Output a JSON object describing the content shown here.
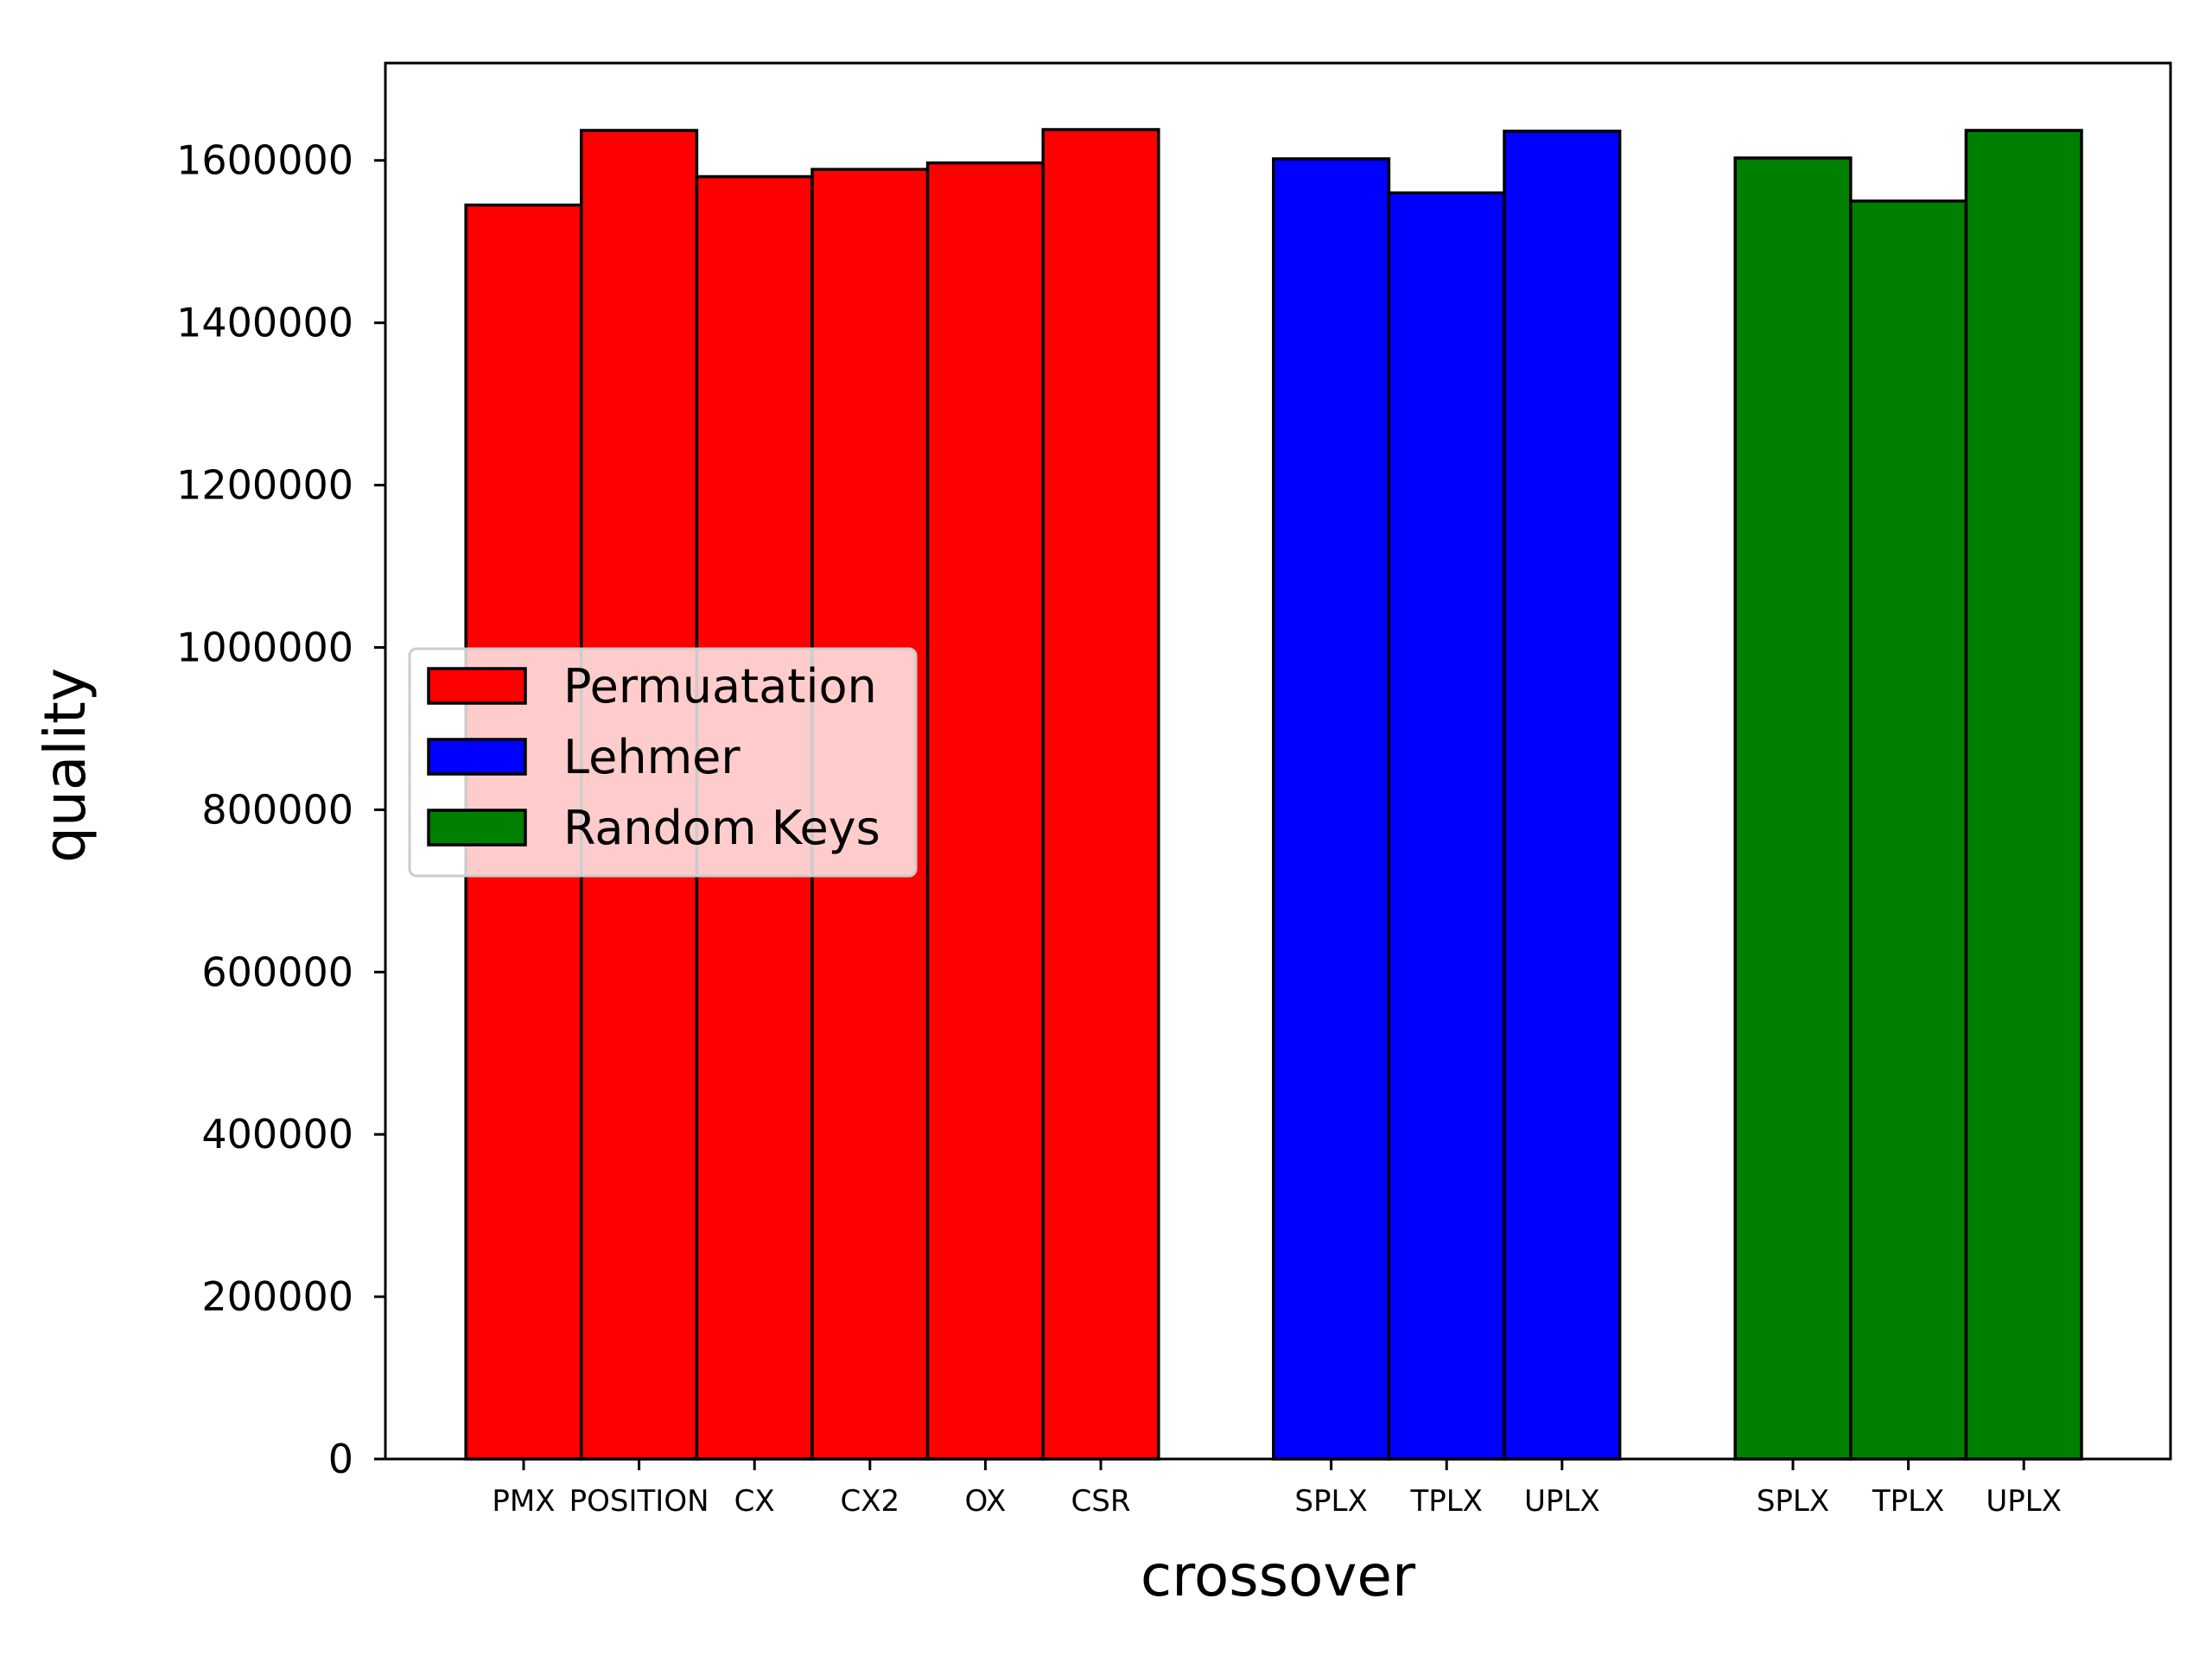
{
  "chart_data": {
    "type": "bar",
    "xlabel": "crossover",
    "ylabel": "quality",
    "ylim": [
      0,
      1720000
    ],
    "yticks": [
      0,
      200000,
      400000,
      600000,
      800000,
      1000000,
      1200000,
      1400000,
      1600000
    ],
    "ytick_labels": [
      "0",
      "200000",
      "400000",
      "600000",
      "800000",
      "1000000",
      "1200000",
      "1400000",
      "1600000"
    ],
    "grid": false,
    "legend_position": "center-left",
    "series": [
      {
        "name": "Permuatation",
        "color": "#ff0000",
        "categories": [
          "PMX",
          "POSITION",
          "CX",
          "CX2",
          "OX",
          "CSR"
        ],
        "values": [
          1545000,
          1637000,
          1580000,
          1589000,
          1597000,
          1638000
        ]
      },
      {
        "name": "Lehmer",
        "color": "#0000ff",
        "categories": [
          "SPLX",
          "TPLX",
          "UPLX"
        ],
        "values": [
          1602000,
          1560000,
          1636000
        ]
      },
      {
        "name": "Random Keys",
        "color": "#008000",
        "categories": [
          "SPLX",
          "TPLX",
          "UPLX"
        ],
        "values": [
          1603000,
          1550000,
          1637000
        ]
      }
    ]
  }
}
